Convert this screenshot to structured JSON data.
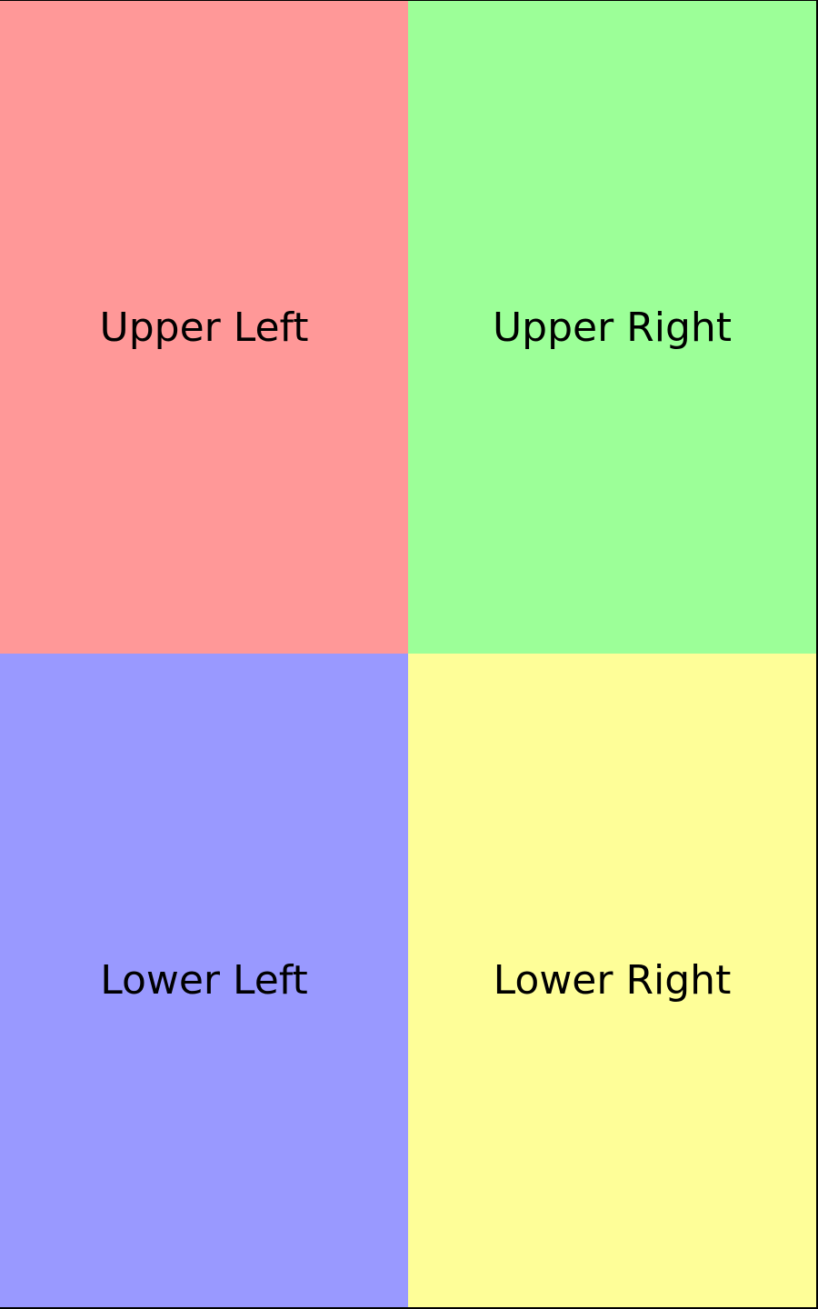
{
  "quadrants": {
    "upper_left": {
      "label": "Upper Left",
      "color": "#ff9898"
    },
    "upper_right": {
      "label": "Upper Right",
      "color": "#9cff98"
    },
    "lower_left": {
      "label": "Lower Left",
      "color": "#9999ff"
    },
    "lower_right": {
      "label": "Lower Right",
      "color": "#fefe98"
    }
  }
}
